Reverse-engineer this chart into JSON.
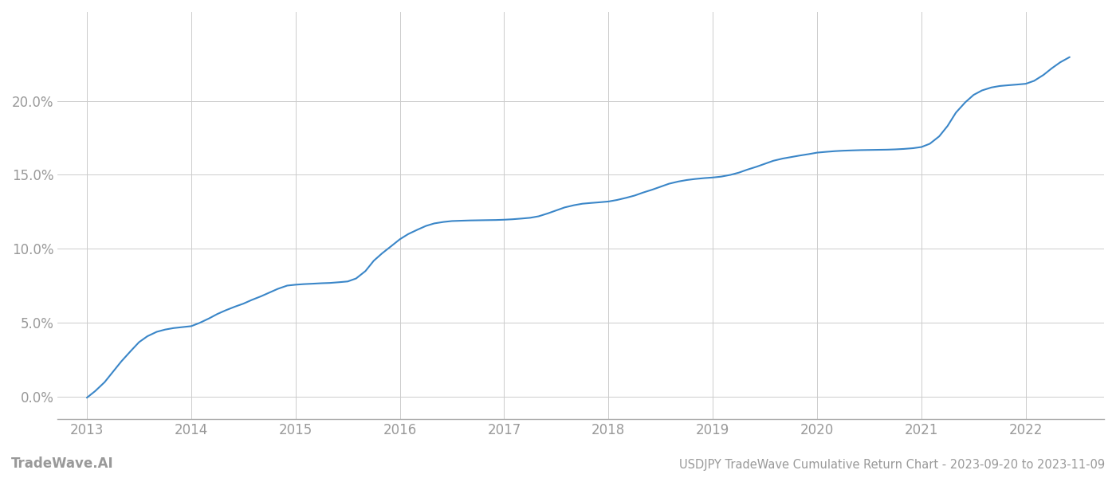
{
  "title": "USDJPY TradeWave Cumulative Return Chart - 2023-09-20 to 2023-11-09",
  "watermark": "TradeWave.AI",
  "line_color": "#3a86c8",
  "background_color": "#ffffff",
  "grid_color": "#cccccc",
  "x_values": [
    2013.0,
    2013.08,
    2013.17,
    2013.25,
    2013.33,
    2013.42,
    2013.5,
    2013.58,
    2013.67,
    2013.75,
    2013.83,
    2013.92,
    2014.0,
    2014.08,
    2014.17,
    2014.25,
    2014.33,
    2014.42,
    2014.5,
    2014.58,
    2014.67,
    2014.75,
    2014.83,
    2014.92,
    2015.0,
    2015.08,
    2015.17,
    2015.25,
    2015.33,
    2015.42,
    2015.5,
    2015.58,
    2015.67,
    2015.75,
    2015.83,
    2015.92,
    2016.0,
    2016.08,
    2016.17,
    2016.25,
    2016.33,
    2016.42,
    2016.5,
    2016.58,
    2016.67,
    2016.75,
    2016.83,
    2016.92,
    2017.0,
    2017.08,
    2017.17,
    2017.25,
    2017.33,
    2017.42,
    2017.5,
    2017.58,
    2017.67,
    2017.75,
    2017.83,
    2017.92,
    2018.0,
    2018.08,
    2018.17,
    2018.25,
    2018.33,
    2018.42,
    2018.5,
    2018.58,
    2018.67,
    2018.75,
    2018.83,
    2018.92,
    2019.0,
    2019.08,
    2019.17,
    2019.25,
    2019.33,
    2019.42,
    2019.5,
    2019.58,
    2019.67,
    2019.75,
    2019.83,
    2019.92,
    2020.0,
    2020.08,
    2020.17,
    2020.25,
    2020.33,
    2020.42,
    2020.5,
    2020.58,
    2020.67,
    2020.75,
    2020.83,
    2020.92,
    2021.0,
    2021.08,
    2021.17,
    2021.25,
    2021.33,
    2021.42,
    2021.5,
    2021.58,
    2021.67,
    2021.75,
    2021.83,
    2021.92,
    2022.0,
    2022.08,
    2022.17,
    2022.25,
    2022.33,
    2022.42
  ],
  "y_values": [
    -0.05,
    0.4,
    1.0,
    1.7,
    2.4,
    3.1,
    3.7,
    4.1,
    4.4,
    4.55,
    4.65,
    4.72,
    4.78,
    5.0,
    5.3,
    5.6,
    5.85,
    6.1,
    6.3,
    6.55,
    6.8,
    7.05,
    7.3,
    7.52,
    7.58,
    7.62,
    7.65,
    7.68,
    7.7,
    7.75,
    7.8,
    8.0,
    8.5,
    9.2,
    9.7,
    10.2,
    10.65,
    11.0,
    11.3,
    11.55,
    11.72,
    11.82,
    11.88,
    11.9,
    11.92,
    11.93,
    11.94,
    11.95,
    11.97,
    12.0,
    12.05,
    12.1,
    12.2,
    12.4,
    12.6,
    12.8,
    12.95,
    13.05,
    13.1,
    13.15,
    13.2,
    13.3,
    13.45,
    13.6,
    13.8,
    14.0,
    14.2,
    14.4,
    14.55,
    14.65,
    14.72,
    14.78,
    14.82,
    14.88,
    15.0,
    15.15,
    15.35,
    15.55,
    15.75,
    15.95,
    16.1,
    16.2,
    16.3,
    16.4,
    16.5,
    16.55,
    16.6,
    16.63,
    16.65,
    16.67,
    16.68,
    16.69,
    16.7,
    16.72,
    16.75,
    16.8,
    16.88,
    17.1,
    17.6,
    18.3,
    19.2,
    19.9,
    20.4,
    20.7,
    20.9,
    21.0,
    21.05,
    21.1,
    21.15,
    21.35,
    21.75,
    22.2,
    22.6,
    22.95
  ],
  "ylim": [
    -1.5,
    26
  ],
  "yticks": [
    0.0,
    5.0,
    10.0,
    15.0,
    20.0
  ],
  "xlim_left": 2012.72,
  "xlim_right": 2022.75,
  "xticks": [
    2013,
    2014,
    2015,
    2016,
    2017,
    2018,
    2019,
    2020,
    2021,
    2022
  ],
  "axis_label_color": "#999999",
  "tick_label_fontsize": 12,
  "title_fontsize": 10.5,
  "watermark_fontsize": 12,
  "line_width": 1.5
}
